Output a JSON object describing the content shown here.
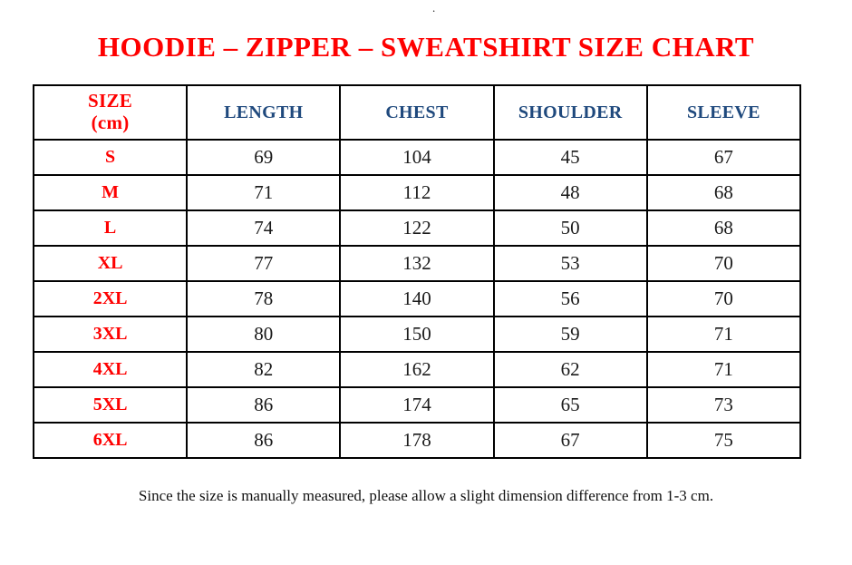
{
  "page": {
    "top_mark": ".",
    "title": "HOODIE – ZIPPER – SWEATSHIRT SIZE CHART",
    "footnote": "Since the size is manually measured, please allow a slight dimension difference from 1-3 cm."
  },
  "table": {
    "header": {
      "size_line1": "SIZE",
      "size_line2": "(cm)",
      "columns": [
        "LENGTH",
        "CHEST",
        "SHOULDER",
        "SLEEVE"
      ]
    },
    "rows": [
      {
        "size": "S",
        "length": "69",
        "chest": "104",
        "shoulder": "45",
        "sleeve": "67"
      },
      {
        "size": "M",
        "length": "71",
        "chest": "112",
        "shoulder": "48",
        "sleeve": "68"
      },
      {
        "size": "L",
        "length": "74",
        "chest": "122",
        "shoulder": "50",
        "sleeve": "68"
      },
      {
        "size": "XL",
        "length": "77",
        "chest": "132",
        "shoulder": "53",
        "sleeve": "70"
      },
      {
        "size": "2XL",
        "length": "78",
        "chest": "140",
        "shoulder": "56",
        "sleeve": "70"
      },
      {
        "size": "3XL",
        "length": "80",
        "chest": "150",
        "shoulder": "59",
        "sleeve": "71"
      },
      {
        "size": "4XL",
        "length": "82",
        "chest": "162",
        "shoulder": "62",
        "sleeve": "71"
      },
      {
        "size": "5XL",
        "length": "86",
        "chest": "174",
        "shoulder": "65",
        "sleeve": "73"
      },
      {
        "size": "6XL",
        "length": "86",
        "chest": "178",
        "shoulder": "67",
        "sleeve": "75"
      }
    ]
  },
  "colors": {
    "accent_red": "#FE0000",
    "header_blue": "#1F497D",
    "cell_text": "#1A1A1A",
    "border": "#000000",
    "background": "#FFFFFF"
  }
}
